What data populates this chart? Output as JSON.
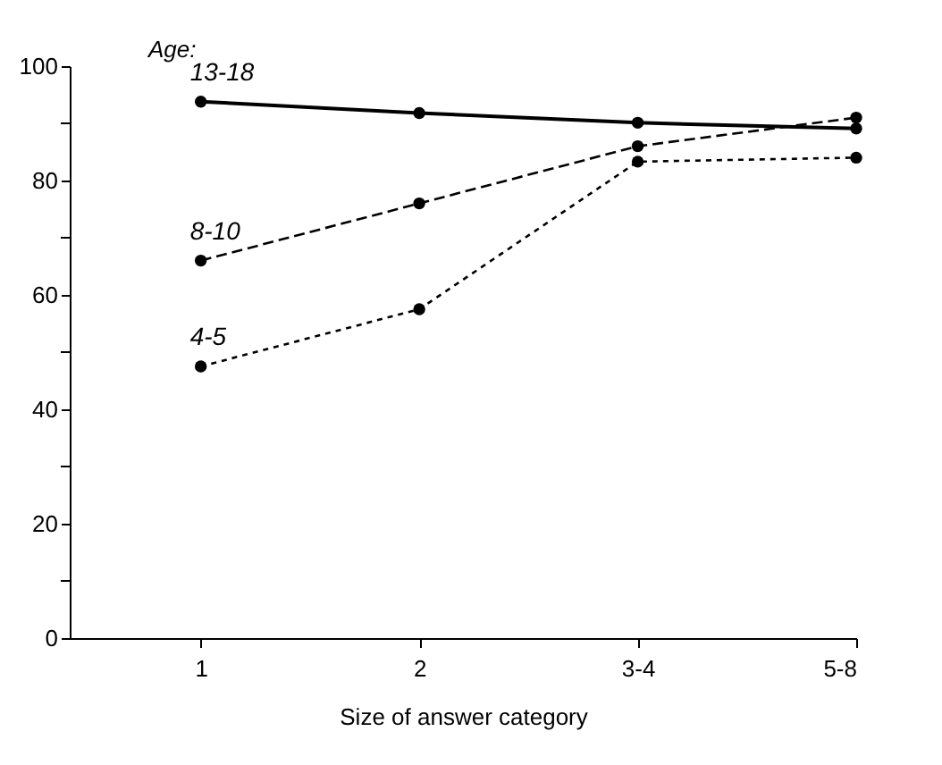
{
  "chart_data": {
    "type": "line",
    "xlabel": "Size of answer category",
    "annotations": [
      "Age:"
    ],
    "categories": [
      "1",
      "2",
      "3-4",
      "5-8"
    ],
    "series": [
      {
        "name": "13-18",
        "color": "#000000",
        "line_style": "solid",
        "values": [
          93.8,
          91.8,
          90.1,
          89.1
        ]
      },
      {
        "name": "8-10",
        "color": "#000000",
        "line_style": "dashed",
        "values": [
          66,
          76,
          86,
          91
        ]
      },
      {
        "name": "4-5",
        "color": "#000000",
        "line_style": "dotted",
        "values": [
          47.5,
          57.5,
          83.3,
          84
        ]
      }
    ],
    "ylim": [
      0,
      100
    ],
    "yticks": [
      0,
      {
        "value": 10,
        "label": null
      },
      20,
      {
        "value": 30,
        "label": null
      },
      40,
      {
        "value": 50,
        "label": null
      },
      60,
      {
        "value": 70,
        "label": null
      },
      80,
      {
        "value": 90,
        "label": null
      },
      100
    ],
    "marker": "circle",
    "grid": false
  }
}
